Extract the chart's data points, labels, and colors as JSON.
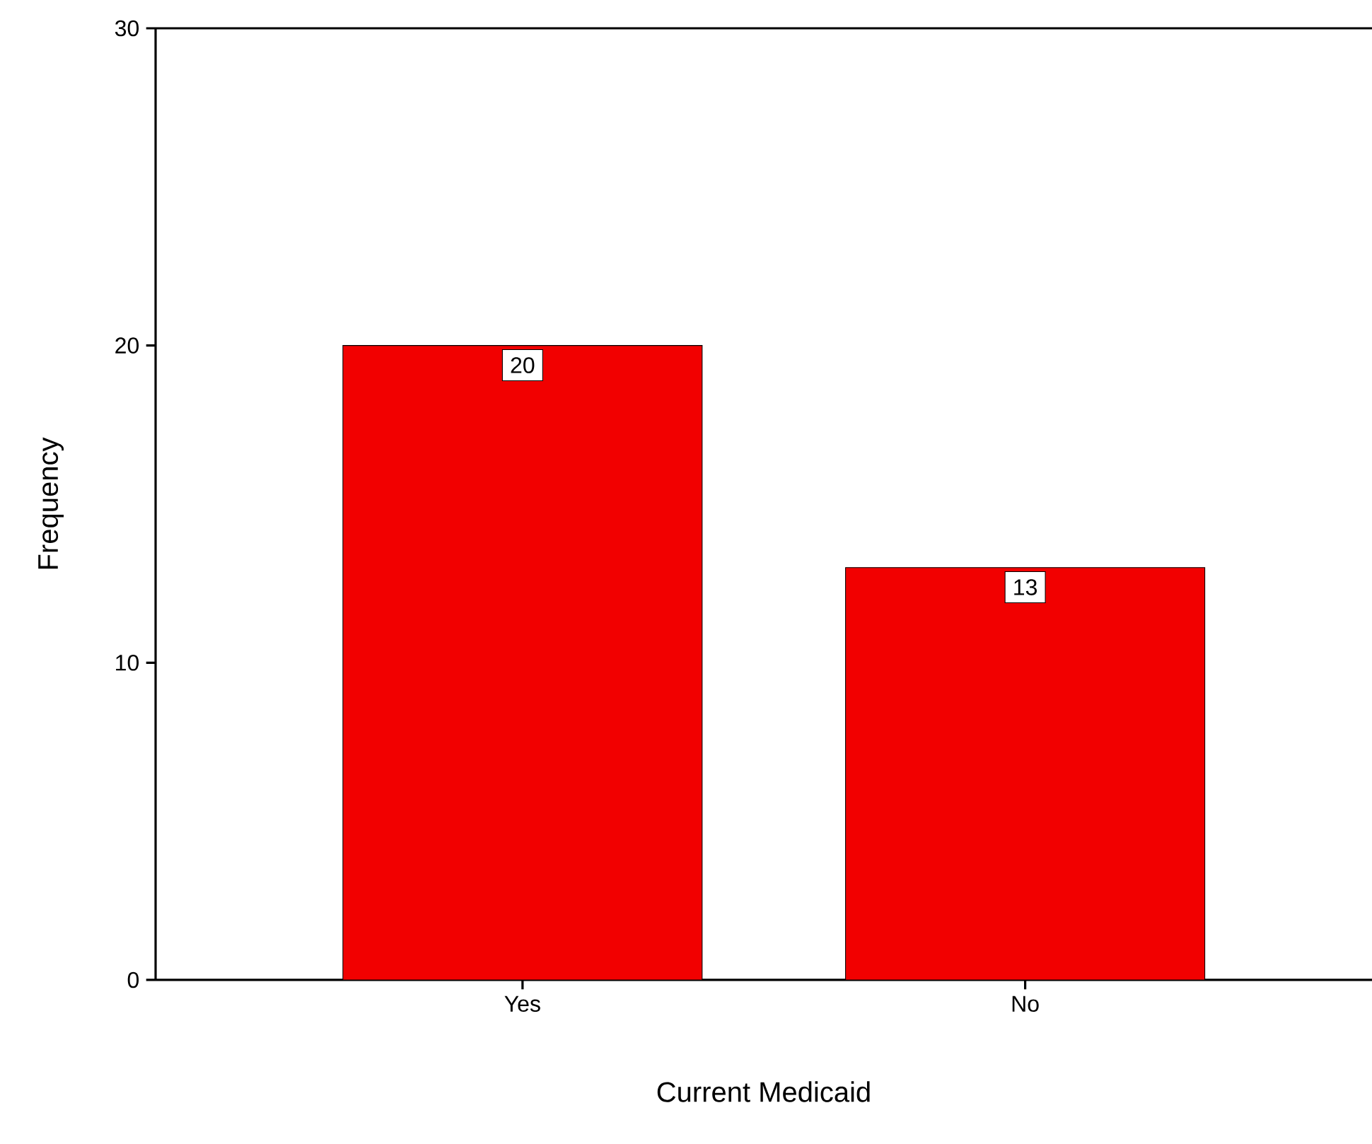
{
  "chart_data": {
    "type": "bar",
    "xlabel": "Current Medicaid",
    "ylabel": "Frequency",
    "categories": [
      "Yes",
      "No"
    ],
    "values": [
      20,
      13
    ],
    "color": "#f20000",
    "ylim": [
      0,
      30
    ],
    "yticks": [
      0,
      10,
      20,
      30
    ],
    "data_labels": true,
    "grid": false
  }
}
